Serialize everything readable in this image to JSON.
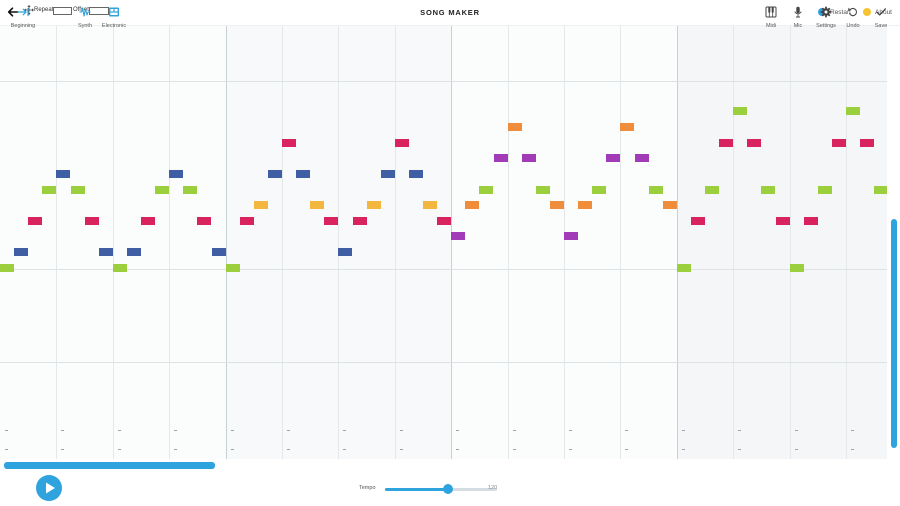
{
  "header": {
    "title": "SONG MAKER",
    "repeat_label": "Repeat",
    "offset_label": "Offset",
    "restart_label": "Restart",
    "about_label": "About",
    "restart_color": "#2fa3dd",
    "about_color": "#f4c430"
  },
  "footer": {
    "beginning_label": "Beginning",
    "synth_label": "Synth",
    "electronic_label": "Electronic",
    "tempo_label": "Tempo",
    "tempo_value": "120",
    "tempo_fraction": 0.56,
    "midi_label": "Midi",
    "mic_label": "Mic",
    "settings_label": "Settings",
    "undo_label": "Undo",
    "save_label": "Save"
  },
  "colors": {
    "accent": "#2fa3dd",
    "note_green": "#9ccf3e",
    "note_red": "#d9235f",
    "note_blue": "#3f5ea3",
    "note_yellow": "#f3b63f",
    "note_orange": "#ef8d3a",
    "note_purple": "#a23bb7"
  },
  "grid": {
    "columns": 63,
    "rows": 27,
    "notes": [
      {
        "col": 0,
        "row": 15,
        "color": "green"
      },
      {
        "col": 1,
        "row": 14,
        "color": "blue"
      },
      {
        "col": 2,
        "row": 12,
        "color": "red"
      },
      {
        "col": 3,
        "row": 10,
        "color": "green"
      },
      {
        "col": 4,
        "row": 9,
        "color": "blue"
      },
      {
        "col": 5,
        "row": 10,
        "color": "green"
      },
      {
        "col": 6,
        "row": 12,
        "color": "red"
      },
      {
        "col": 7,
        "row": 14,
        "color": "blue"
      },
      {
        "col": 8,
        "row": 15,
        "color": "green"
      },
      {
        "col": 9,
        "row": 14,
        "color": "blue"
      },
      {
        "col": 10,
        "row": 12,
        "color": "red"
      },
      {
        "col": 11,
        "row": 10,
        "color": "green"
      },
      {
        "col": 12,
        "row": 9,
        "color": "blue"
      },
      {
        "col": 13,
        "row": 10,
        "color": "green"
      },
      {
        "col": 14,
        "row": 12,
        "color": "red"
      },
      {
        "col": 15,
        "row": 14,
        "color": "blue"
      },
      {
        "col": 16,
        "row": 15,
        "color": "green"
      },
      {
        "col": 17,
        "row": 12,
        "color": "red"
      },
      {
        "col": 18,
        "row": 11,
        "color": "yellow"
      },
      {
        "col": 19,
        "row": 9,
        "color": "blue"
      },
      {
        "col": 20,
        "row": 7,
        "color": "red"
      },
      {
        "col": 21,
        "row": 9,
        "color": "blue"
      },
      {
        "col": 22,
        "row": 11,
        "color": "yellow"
      },
      {
        "col": 23,
        "row": 12,
        "color": "red"
      },
      {
        "col": 24,
        "row": 14,
        "color": "blue"
      },
      {
        "col": 25,
        "row": 12,
        "color": "red"
      },
      {
        "col": 26,
        "row": 11,
        "color": "yellow"
      },
      {
        "col": 27,
        "row": 9,
        "color": "blue"
      },
      {
        "col": 28,
        "row": 7,
        "color": "red"
      },
      {
        "col": 29,
        "row": 9,
        "color": "blue"
      },
      {
        "col": 30,
        "row": 11,
        "color": "yellow"
      },
      {
        "col": 31,
        "row": 12,
        "color": "red"
      },
      {
        "col": 32,
        "row": 13,
        "color": "purple"
      },
      {
        "col": 33,
        "row": 11,
        "color": "orange"
      },
      {
        "col": 34,
        "row": 10,
        "color": "green"
      },
      {
        "col": 35,
        "row": 8,
        "color": "purple"
      },
      {
        "col": 36,
        "row": 6,
        "color": "orange"
      },
      {
        "col": 37,
        "row": 8,
        "color": "purple"
      },
      {
        "col": 38,
        "row": 10,
        "color": "green"
      },
      {
        "col": 39,
        "row": 11,
        "color": "orange"
      },
      {
        "col": 40,
        "row": 13,
        "color": "purple"
      },
      {
        "col": 41,
        "row": 11,
        "color": "orange"
      },
      {
        "col": 42,
        "row": 10,
        "color": "green"
      },
      {
        "col": 43,
        "row": 8,
        "color": "purple"
      },
      {
        "col": 44,
        "row": 6,
        "color": "orange"
      },
      {
        "col": 45,
        "row": 8,
        "color": "purple"
      },
      {
        "col": 46,
        "row": 10,
        "color": "green"
      },
      {
        "col": 47,
        "row": 11,
        "color": "orange"
      },
      {
        "col": 48,
        "row": 15,
        "color": "green"
      },
      {
        "col": 49,
        "row": 12,
        "color": "red"
      },
      {
        "col": 50,
        "row": 10,
        "color": "green"
      },
      {
        "col": 51,
        "row": 7,
        "color": "red"
      },
      {
        "col": 52,
        "row": 5,
        "color": "green"
      },
      {
        "col": 53,
        "row": 7,
        "color": "red"
      },
      {
        "col": 54,
        "row": 10,
        "color": "green"
      },
      {
        "col": 55,
        "row": 12,
        "color": "red"
      },
      {
        "col": 56,
        "row": 15,
        "color": "green"
      },
      {
        "col": 57,
        "row": 12,
        "color": "red"
      },
      {
        "col": 58,
        "row": 10,
        "color": "green"
      },
      {
        "col": 59,
        "row": 7,
        "color": "red"
      },
      {
        "col": 60,
        "row": 5,
        "color": "green"
      },
      {
        "col": 61,
        "row": 7,
        "color": "red"
      },
      {
        "col": 62,
        "row": 10,
        "color": "green"
      }
    ]
  }
}
